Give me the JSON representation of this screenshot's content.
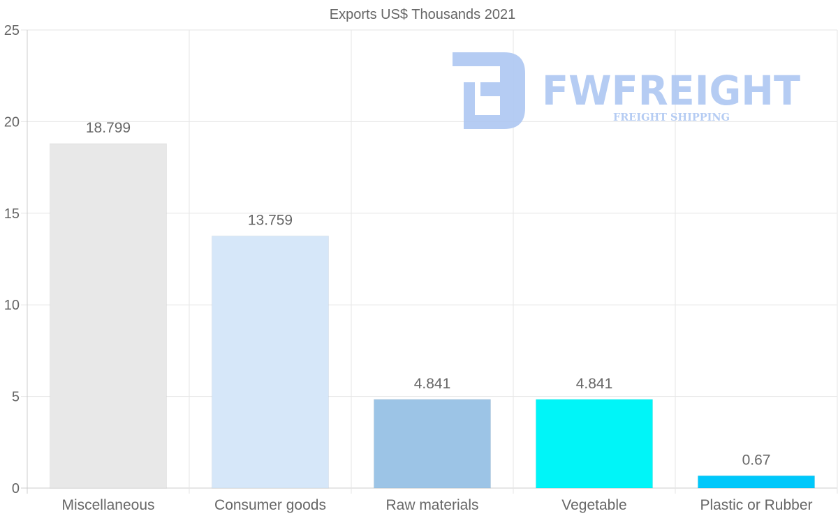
{
  "chart_data": {
    "type": "bar",
    "title": "Exports US$ Thousands 2021",
    "categories": [
      "Miscellaneous",
      "Consumer goods",
      "Raw materials",
      "Vegetable",
      "Plastic or Rubber"
    ],
    "values": [
      18.799,
      13.759,
      4.841,
      4.841,
      0.67
    ],
    "value_labels": [
      "18.799",
      "13.759",
      "4.841",
      "4.841",
      "0.67"
    ],
    "colors": [
      "#e8e8e8",
      "#d6e7f9",
      "#9cc4e6",
      "#00f5f8",
      "#00c8fb"
    ],
    "ylim": [
      0,
      25
    ],
    "yticks": [
      "0",
      "5",
      "10",
      "15",
      "20",
      "25"
    ],
    "xlabel": "",
    "ylabel": "",
    "grid": true,
    "legend": "none"
  },
  "watermark": {
    "brand": "FWFREIGHT",
    "tagline": "FREIGHT SHIPPING"
  }
}
